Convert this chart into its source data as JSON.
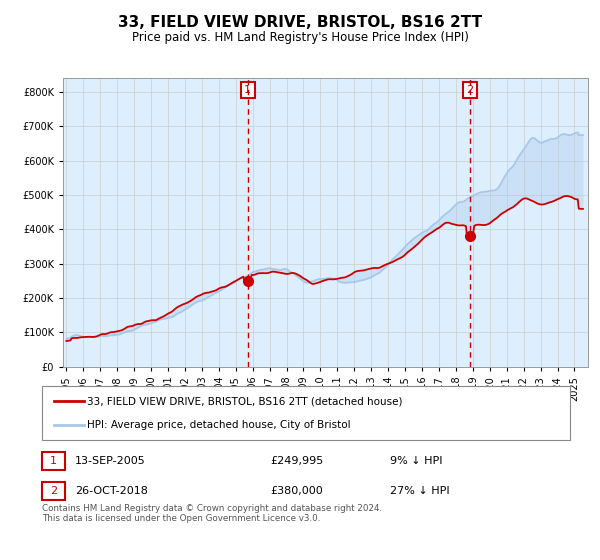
{
  "title": "33, FIELD VIEW DRIVE, BRISTOL, BS16 2TT",
  "subtitle": "Price paid vs. HM Land Registry's House Price Index (HPI)",
  "ytick_values": [
    0,
    100000,
    200000,
    300000,
    400000,
    500000,
    600000,
    700000,
    800000
  ],
  "ylim": [
    0,
    840000
  ],
  "xlim_start": 1994.8,
  "xlim_end": 2025.8,
  "sale1": {
    "date_num": 2005.71,
    "price": 249995,
    "label": "1",
    "text": "13-SEP-2005",
    "price_text": "£249,995",
    "hpi_text": "9% ↓ HPI"
  },
  "sale2": {
    "date_num": 2018.82,
    "price": 380000,
    "label": "2",
    "text": "26-OCT-2018",
    "price_text": "£380,000",
    "hpi_text": "27% ↓ HPI"
  },
  "legend_line1": "33, FIELD VIEW DRIVE, BRISTOL, BS16 2TT (detached house)",
  "legend_line2": "HPI: Average price, detached house, City of Bristol",
  "footer": "Contains HM Land Registry data © Crown copyright and database right 2024.\nThis data is licensed under the Open Government Licence v3.0.",
  "hpi_color": "#a8c8e8",
  "price_color": "#cc0000",
  "bg_color": "#ddeeff",
  "plot_bg": "#ffffff",
  "grid_color": "#cccccc",
  "vline_color": "#cc0000",
  "box_color": "#cc0000",
  "hpi_anchors_x": [
    1995.0,
    1997.0,
    1999.0,
    2001.0,
    2003.0,
    2004.5,
    2005.5,
    2007.0,
    2007.8,
    2009.2,
    2010.0,
    2011.5,
    2012.5,
    2013.5,
    2014.5,
    2015.5,
    2016.5,
    2017.5,
    2018.5,
    2019.5,
    2020.5,
    2021.5,
    2022.5,
    2023.0,
    2024.0,
    2025.3
  ],
  "hpi_anchors_y": [
    82000,
    98000,
    125000,
    160000,
    210000,
    255000,
    275000,
    300000,
    290000,
    245000,
    260000,
    252000,
    258000,
    278000,
    318000,
    365000,
    405000,
    445000,
    475000,
    498000,
    508000,
    575000,
    660000,
    645000,
    665000,
    675000
  ],
  "price_anchors_x": [
    1995.0,
    1997.0,
    1999.0,
    2001.0,
    2003.5,
    2005.71,
    2007.0,
    2008.5,
    2009.5,
    2010.5,
    2012.0,
    2013.5,
    2015.0,
    2016.5,
    2017.5,
    2018.82,
    2020.0,
    2021.0,
    2022.0,
    2023.0,
    2024.5,
    2025.3
  ],
  "price_anchors_y": [
    75000,
    90000,
    115000,
    148000,
    192000,
    249995,
    272000,
    265000,
    230000,
    248000,
    250000,
    270000,
    310000,
    365000,
    400000,
    380000,
    390000,
    430000,
    465000,
    450000,
    470000,
    460000
  ]
}
